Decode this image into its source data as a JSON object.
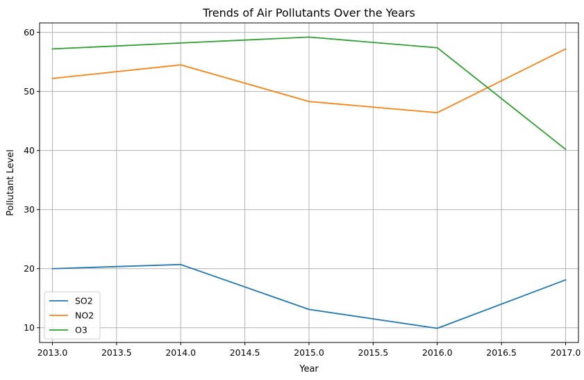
{
  "chart_data": {
    "type": "line",
    "title": "Trends of Air Pollutants Over the Years",
    "xlabel": "Year",
    "ylabel": "Pollutant Level",
    "x": [
      2013,
      2014,
      2015,
      2016,
      2017
    ],
    "xlim": [
      2012.9,
      2017.1
    ],
    "ylim": [
      7.5,
      61.6
    ],
    "xticks": [
      2013.0,
      2013.5,
      2014.0,
      2014.5,
      2015.0,
      2015.5,
      2016.0,
      2016.5,
      2017.0
    ],
    "xtick_labels": [
      "2013.0",
      "2013.5",
      "2014.0",
      "2014.5",
      "2015.0",
      "2015.5",
      "2016.0",
      "2016.5",
      "2017.0"
    ],
    "yticks": [
      10,
      20,
      30,
      40,
      50,
      60
    ],
    "ytick_labels": [
      "10",
      "20",
      "30",
      "40",
      "50",
      "60"
    ],
    "grid": true,
    "legend_position": "bottom-left",
    "series": [
      {
        "name": "SO2",
        "color": "#1f77b4",
        "values": [
          20.0,
          20.7,
          13.1,
          9.9,
          18.1
        ]
      },
      {
        "name": "NO2",
        "color": "#ff7f0e",
        "values": [
          52.2,
          54.5,
          48.3,
          46.4,
          57.2
        ]
      },
      {
        "name": "O3",
        "color": "#2ca02c",
        "values": [
          57.2,
          58.2,
          59.2,
          57.4,
          40.2
        ]
      }
    ]
  }
}
